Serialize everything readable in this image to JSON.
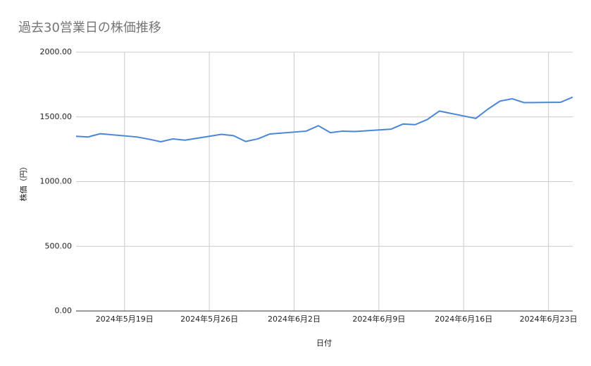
{
  "chart_data": {
    "type": "line",
    "title": "過去30営業日の株価推移",
    "x_label": "日付",
    "y_label": "株価（円）",
    "x": [
      "2024-05-15",
      "2024-05-16",
      "2024-05-17",
      "2024-05-20",
      "2024-05-21",
      "2024-05-22",
      "2024-05-23",
      "2024-05-24",
      "2024-05-27",
      "2024-05-28",
      "2024-05-29",
      "2024-05-30",
      "2024-05-31",
      "2024-06-03",
      "2024-06-04",
      "2024-06-05",
      "2024-06-06",
      "2024-06-07",
      "2024-06-10",
      "2024-06-11",
      "2024-06-12",
      "2024-06-13",
      "2024-06-14",
      "2024-06-17",
      "2024-06-18",
      "2024-06-19",
      "2024-06-20",
      "2024-06-21",
      "2024-06-24",
      "2024-06-25"
    ],
    "series": [
      {
        "name": "株価",
        "color": "#4a86d8",
        "values": [
          1350,
          1345,
          1370,
          1345,
          1328,
          1308,
          1330,
          1320,
          1365,
          1355,
          1310,
          1330,
          1368,
          1390,
          1432,
          1378,
          1390,
          1387,
          1405,
          1445,
          1440,
          1480,
          1545,
          1488,
          1560,
          1622,
          1640,
          1610,
          1613,
          1652
        ]
      }
    ],
    "xlim": [
      "2024-05-15",
      "2024-06-25"
    ],
    "xticks": [
      {
        "value": "2024-05-19",
        "label": "2024年5月19日"
      },
      {
        "value": "2024-05-26",
        "label": "2024年5月26日"
      },
      {
        "value": "2024-06-02",
        "label": "2024年6月2日"
      },
      {
        "value": "2024-06-09",
        "label": "2024年6月9日"
      },
      {
        "value": "2024-06-16",
        "label": "2024年6月16日"
      },
      {
        "value": "2024-06-23",
        "label": "2024年6月23日"
      }
    ],
    "ylim": [
      0,
      2000
    ],
    "yticks": [
      {
        "value": 0,
        "label": "0.00"
      },
      {
        "value": 500,
        "label": "500.00"
      },
      {
        "value": 1000,
        "label": "1000.00"
      },
      {
        "value": 1500,
        "label": "1500.00"
      },
      {
        "value": 2000,
        "label": "2000.00"
      }
    ],
    "grid": true
  }
}
